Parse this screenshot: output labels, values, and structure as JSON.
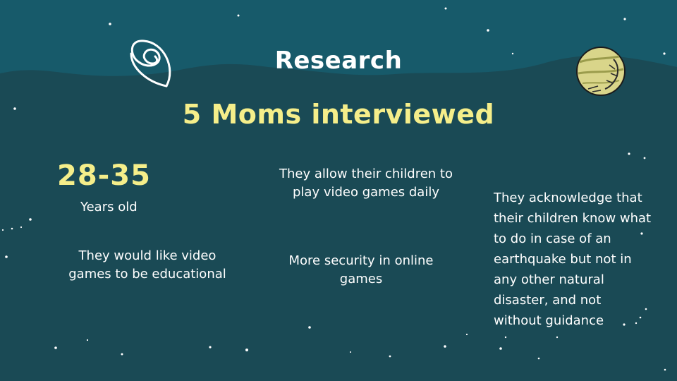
{
  "slide": {
    "title": "Research",
    "subtitle": "5 Moms interviewed",
    "age_range": "28-35",
    "age_label": "Years old",
    "points": {
      "educational": "They would like video games to be educational",
      "daily_play": "They allow their children to play video games daily",
      "security": "More security in online games",
      "earthquake": "They acknowledge that their children know what to do in case of an earthquake but not in any other natural disaster, and not without guidance"
    }
  },
  "colors": {
    "background": "#1a4a55",
    "wave": "#175a6a",
    "accent_yellow": "#f5ee8a",
    "text": "#ffffff",
    "planet": "#d9d58a"
  },
  "icons": [
    "spiral-galaxy-icon",
    "planet-icon",
    "star-icon"
  ]
}
